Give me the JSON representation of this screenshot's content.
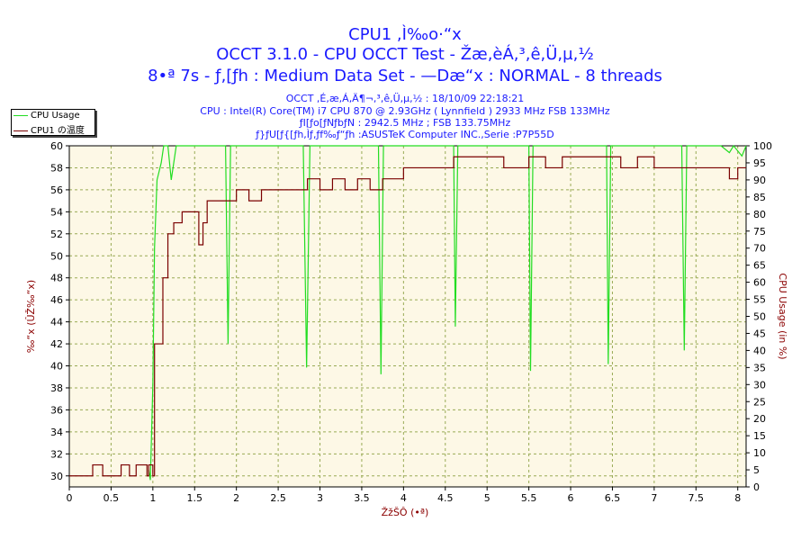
{
  "header": {
    "title": "CPU1 ,Ì‰ο·“x",
    "subtitle": "OCCT 3.1.0 - CPU OCCT Test - Žæ,èÁ,³,ê,Ü,µ,½",
    "test_line": "8•ª 7s - ƒ‚[ƒh : Medium Data Set - —Dæ“x : NORMAL - 8 threads"
  },
  "info": {
    "date_line": "OCCT ,É,æ,Á,Ä¶¬,³,ê,Ü,µ,½ : 18/10/09 22:18:21",
    "cpu_line": "CPU : Intel(R) Core(TM) i7 CPU 870 @ 2.93GHz ( Lynnfield ) 2933 MHz FSB 133MHz",
    "ram_line": "ƒI[ƒo[ƒNƒbƒN : 2942.5 MHz ; FSB 133.75MHz",
    "mb_line": "ƒ}ƒU[ƒ{[ƒh,Ìƒ‚ƒf‰ƒ“ƒh :ASUSTeK Computer INC.,Serie :P7P55D"
  },
  "legend": {
    "cpu_usage": "CPU Usage",
    "temp": "CPU1 の温度"
  },
  "colors": {
    "usage": "#22dd22",
    "temp": "#7a0000",
    "grid": "#99aa55",
    "plot_bg": "#fdf8e6",
    "title": "#1a1aff",
    "axis_text": "#8b0000"
  },
  "chart_data": {
    "type": "line",
    "xlabel": "ŽžŠÔ (•ª)",
    "ylabel_left": "‰“x (ÛŽ‰“x)",
    "ylabel_right": "CPU Usage (in %)",
    "xlim": [
      0,
      8.1
    ],
    "ylim_left": [
      29,
      60
    ],
    "ylim_right": [
      0,
      100
    ],
    "x_ticks": [
      0,
      0.5,
      1,
      1.5,
      2,
      2.5,
      3,
      3.5,
      4,
      4.5,
      5,
      5.5,
      6,
      6.5,
      7,
      7.5,
      8
    ],
    "x_tick_labels": [
      "0",
      "0.5",
      "1",
      "1.5",
      "2",
      "2.5",
      "3",
      "3.5",
      "4",
      "4.5",
      "5",
      "5.5",
      "6",
      "6.5",
      "7",
      "7.5",
      "8"
    ],
    "y_left_ticks": [
      30,
      32,
      34,
      36,
      38,
      40,
      42,
      44,
      46,
      48,
      50,
      52,
      54,
      56,
      58,
      60
    ],
    "y_right_ticks": [
      0,
      5,
      10,
      15,
      20,
      25,
      30,
      35,
      40,
      45,
      50,
      55,
      60,
      65,
      70,
      75,
      80,
      85,
      90,
      95,
      100
    ],
    "grid": true,
    "legend_position": "top-left",
    "series": [
      {
        "name": "CPU Usage",
        "axis": "right",
        "x": [
          0.95,
          0.97,
          1.0,
          1.02,
          1.05,
          1.1,
          1.13,
          1.18,
          1.22,
          1.28,
          1.45,
          1.6,
          1.8,
          1.87,
          1.9,
          1.93,
          2.0,
          2.8,
          2.84,
          2.88,
          2.92,
          3.0,
          3.7,
          3.73,
          3.76,
          3.8,
          3.9,
          4.6,
          4.62,
          4.65,
          4.7,
          5.5,
          5.52,
          5.55,
          5.6,
          6.43,
          6.45,
          6.48,
          6.55,
          7.33,
          7.36,
          7.39,
          7.45,
          7.8,
          7.9,
          7.95,
          8.05,
          8.1
        ],
        "values": [
          5,
          2,
          30,
          70,
          90,
          95,
          100,
          100,
          90,
          100,
          100,
          100,
          100,
          100,
          42,
          100,
          100,
          100,
          35,
          100,
          100,
          100,
          100,
          33,
          100,
          100,
          100,
          100,
          47,
          100,
          100,
          100,
          34,
          100,
          100,
          100,
          36,
          100,
          100,
          100,
          40,
          100,
          100,
          100,
          98,
          100,
          97,
          100
        ]
      },
      {
        "name": "CPU1 の温度",
        "axis": "left",
        "x": [
          0,
          0.25,
          0.28,
          0.38,
          0.4,
          0.6,
          0.62,
          0.7,
          0.72,
          0.8,
          0.82,
          0.93,
          0.95,
          1.0,
          1.02,
          1.08,
          1.12,
          1.18,
          1.25,
          1.35,
          1.45,
          1.55,
          1.6,
          1.65,
          1.75,
          1.85,
          2.0,
          2.15,
          2.3,
          2.45,
          2.6,
          2.75,
          2.85,
          3.0,
          3.15,
          3.3,
          3.45,
          3.6,
          3.75,
          3.9,
          4.0,
          4.2,
          4.4,
          4.6,
          4.8,
          5.0,
          5.2,
          5.5,
          5.7,
          5.9,
          6.1,
          6.4,
          6.6,
          6.8,
          7.0,
          7.2,
          7.4,
          7.6,
          7.8,
          7.9,
          8.0,
          8.1
        ],
        "values": [
          30,
          30,
          31,
          31,
          30,
          30,
          31,
          31,
          30,
          31,
          31,
          30,
          31,
          30,
          42,
          42,
          48,
          52,
          53,
          54,
          54,
          51,
          53,
          55,
          55,
          55,
          56,
          55,
          56,
          56,
          56,
          56,
          57,
          56,
          57,
          56,
          57,
          56,
          57,
          57,
          58,
          58,
          58,
          59,
          59,
          59,
          58,
          59,
          58,
          59,
          59,
          59,
          58,
          59,
          58,
          58,
          58,
          58,
          58,
          57,
          58,
          58
        ]
      }
    ]
  }
}
